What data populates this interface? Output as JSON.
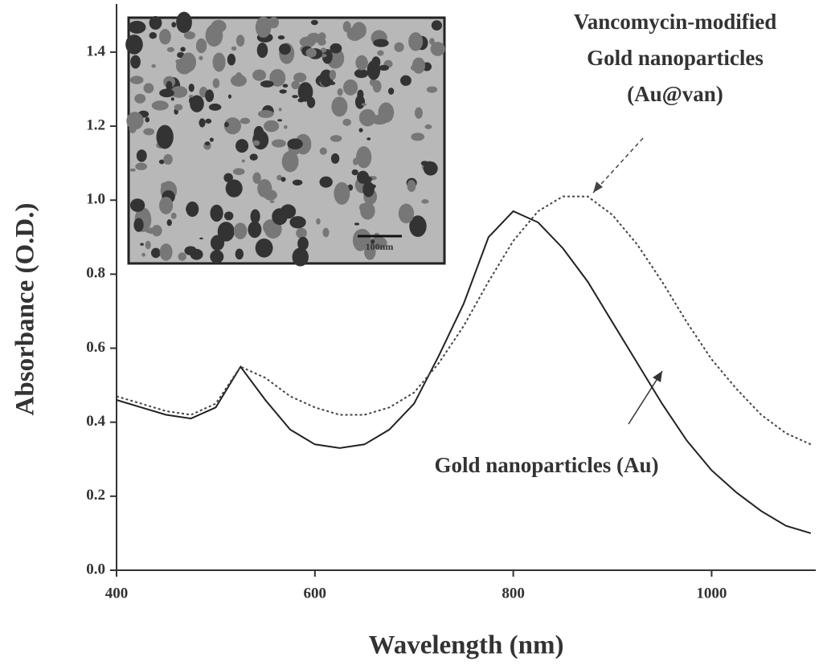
{
  "chart_data": {
    "type": "line",
    "x_label": "Wavelength (nm)",
    "y_label": "Absorbance (O.D.)",
    "x": [
      400,
      425,
      450,
      475,
      500,
      525,
      550,
      575,
      600,
      625,
      650,
      675,
      700,
      725,
      750,
      775,
      800,
      825,
      850,
      875,
      900,
      925,
      950,
      975,
      1000,
      1025,
      1050,
      1075,
      1100
    ],
    "series": [
      {
        "color": "#222222",
        "style": "solid",
        "values": [
          0.46,
          0.44,
          0.42,
          0.41,
          0.44,
          0.55,
          0.46,
          0.38,
          0.34,
          0.33,
          0.34,
          0.38,
          0.45,
          0.58,
          0.72,
          0.9,
          0.97,
          0.94,
          0.87,
          0.78,
          0.67,
          0.56,
          0.45,
          0.35,
          0.27,
          0.21,
          0.16,
          0.12,
          0.1
        ]
      },
      {
        "color": "#444444",
        "style": "dotted",
        "values": [
          0.47,
          0.45,
          0.43,
          0.42,
          0.45,
          0.55,
          0.52,
          0.47,
          0.44,
          0.42,
          0.42,
          0.44,
          0.48,
          0.56,
          0.66,
          0.78,
          0.89,
          0.97,
          1.01,
          1.01,
          0.96,
          0.88,
          0.78,
          0.67,
          0.57,
          0.49,
          0.42,
          0.37,
          0.34
        ]
      }
    ],
    "xlim": [
      400,
      1105
    ],
    "ylim": [
      0,
      1.53
    ],
    "xticks": [
      400,
      600,
      800,
      1000
    ],
    "yticks": [
      {
        "value": 0,
        "label": "0.0"
      },
      0.2,
      0.4,
      0.6,
      0.8,
      {
        "value": 1,
        "label": "1.0"
      },
      1.2,
      1.4
    ],
    "annotations": [
      {
        "lines": [
          "Vancomycin-modified",
          "Gold nanoparticles",
          "(Au@van)"
        ]
      },
      {
        "lines": [
          "Gold nanoparticles (Au)"
        ]
      }
    ],
    "inset_scale_label": "100nm"
  }
}
